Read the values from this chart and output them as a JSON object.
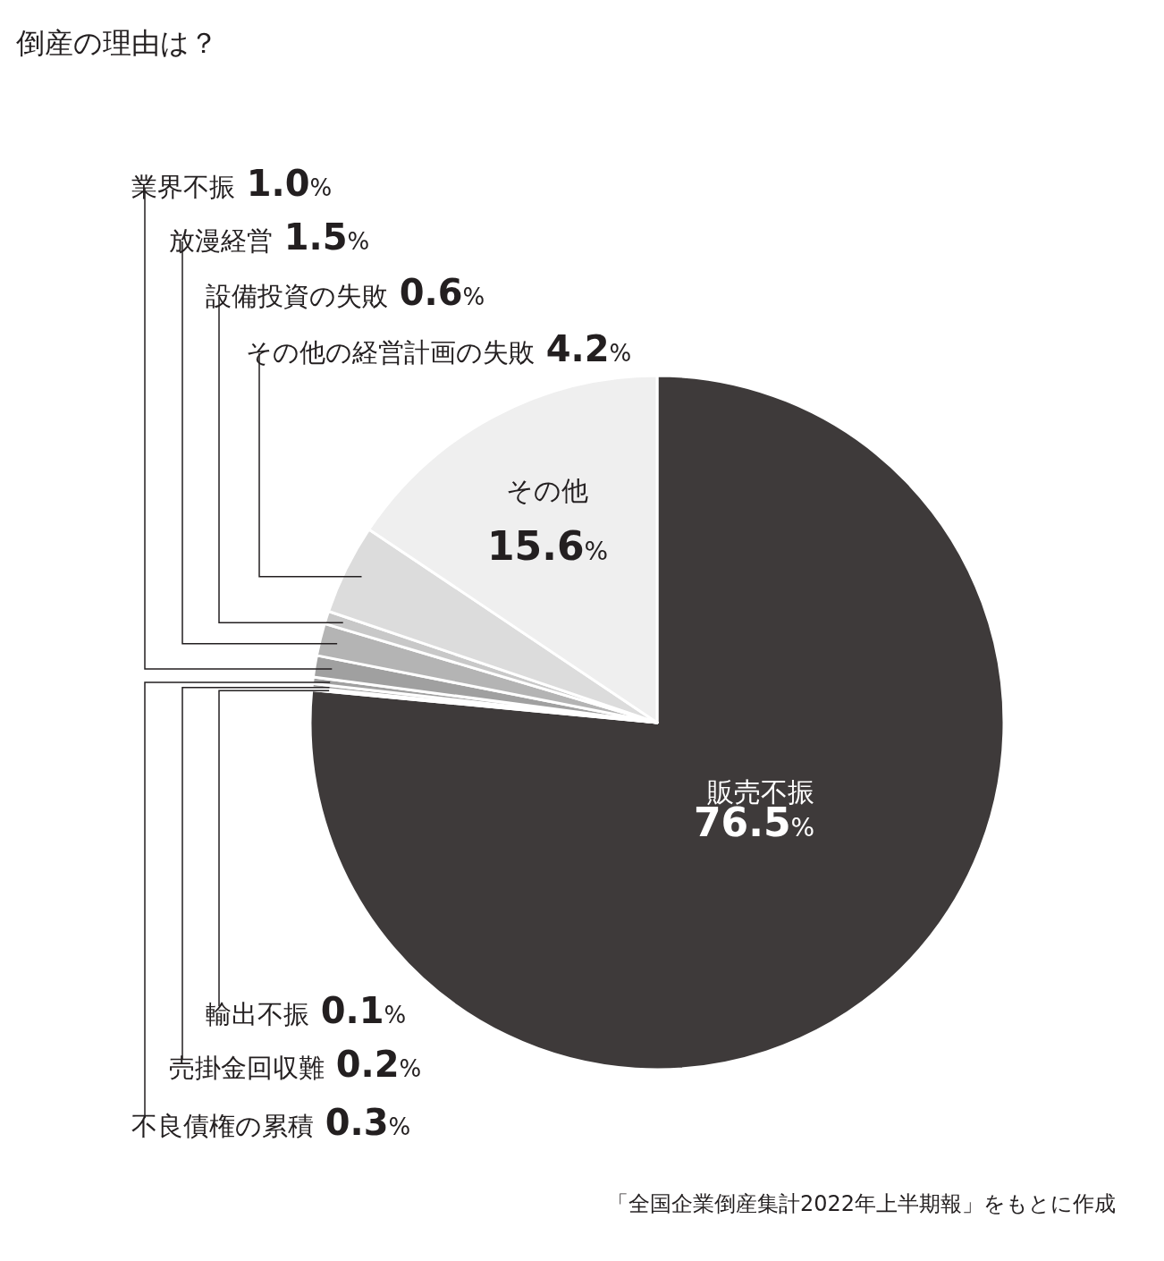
{
  "chart_data": {
    "type": "pie",
    "title": "倒産の理由は？",
    "categories": [
      "販売不振",
      "輸出不振",
      "売掛金回収難",
      "不良債権の累積",
      "業界不振",
      "放漫経営",
      "設備投資の失敗",
      "その他の経営計画の失敗",
      "その他"
    ],
    "values": [
      76.5,
      0.1,
      0.2,
      0.3,
      1.0,
      1.5,
      0.6,
      4.2,
      15.6
    ],
    "value_labels": [
      "76.5%",
      "0.1%",
      "0.2%",
      "0.3%",
      "1.0%",
      "1.5%",
      "0.6%",
      "4.2%",
      "15.6%"
    ],
    "colors": [
      "#3e3a3a",
      "#a0a0a0",
      "#a0a0a0",
      "#a0a0a0",
      "#a0a0a0",
      "#b4b4b4",
      "#c8c8c8",
      "#dcdcdc",
      "#efefef"
    ],
    "legend": false,
    "annotations": [
      "「全国企業倒産集計2022年上半期報」をもとに作成"
    ]
  }
}
